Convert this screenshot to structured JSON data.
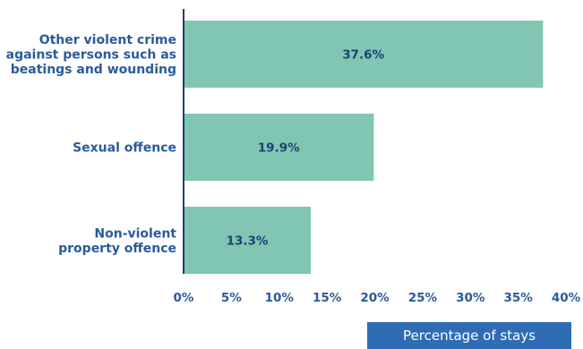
{
  "chart_data": {
    "type": "bar",
    "orientation": "horizontal",
    "categories": [
      [
        "Other violent crime",
        "against persons such as",
        "beatings and wounding"
      ],
      [
        "Sexual offence"
      ],
      [
        "Non-violent",
        "property offence"
      ]
    ],
    "values": [
      37.6,
      19.9,
      13.3
    ],
    "data_labels": [
      "37.6%",
      "19.9%",
      "13.3%"
    ],
    "xlabel": "Percentage of stays",
    "xlim": [
      0,
      40
    ],
    "xticks": [
      "0%",
      "5%",
      "10%",
      "15%",
      "20%",
      "25%",
      "30%",
      "35%",
      "40%"
    ],
    "grid": false
  },
  "colors": {
    "bar": "#80c6b2",
    "text": "#2b5a9a",
    "axis": "#1f3f78",
    "xlabel_bg": "#2e6db4"
  }
}
